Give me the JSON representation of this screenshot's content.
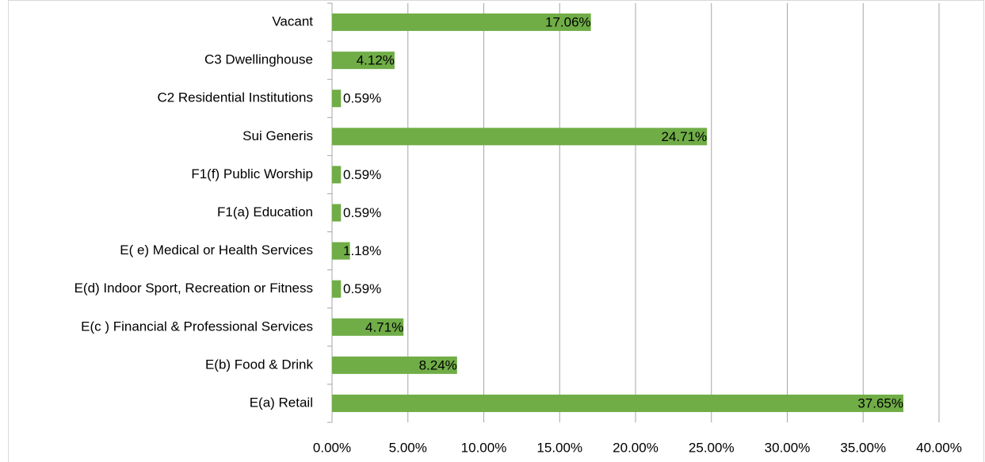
{
  "chart_data": {
    "type": "bar",
    "orientation": "horizontal",
    "categories": [
      "Vacant",
      "C3 Dwellinghouse",
      "C2 Residential Institutions",
      "Sui Generis",
      "F1(f) Public Worship",
      "F1(a) Education",
      "E( e) Medical or Health Services",
      "E(d) Indoor Sport, Recreation or Fitness",
      "E(c ) Financial & Professional Services",
      "E(b) Food & Drink",
      "E(a) Retail"
    ],
    "values": [
      17.06,
      4.12,
      0.59,
      24.71,
      0.59,
      0.59,
      1.18,
      0.59,
      4.71,
      8.24,
      37.65
    ],
    "value_labels": [
      "17.06%",
      "4.12%",
      "0.59%",
      "24.71%",
      "0.59%",
      "0.59%",
      "1.18%",
      "0.59%",
      "4.71%",
      "8.24%",
      "37.65%"
    ],
    "color": "#70ad47",
    "xlim": [
      0,
      40
    ],
    "xticks": [
      {
        "value": 0,
        "label": "0.00%"
      },
      {
        "value": 5,
        "label": "5.00%"
      },
      {
        "value": 10,
        "label": "10.00%"
      },
      {
        "value": 15,
        "label": "15.00%"
      },
      {
        "value": 20,
        "label": "20.00%"
      },
      {
        "value": 25,
        "label": "25.00%"
      },
      {
        "value": 30,
        "label": "30.00%"
      },
      {
        "value": 35,
        "label": "35.00%"
      },
      {
        "value": 40,
        "label": "40.00%"
      }
    ],
    "grid": true
  }
}
